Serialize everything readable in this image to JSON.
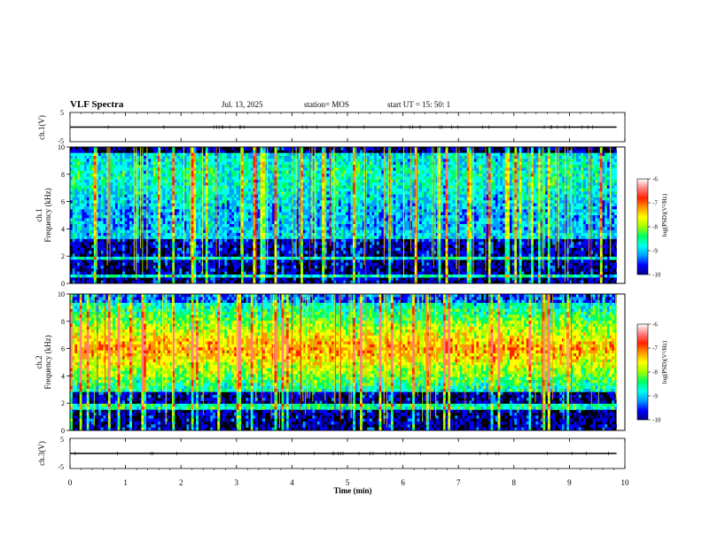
{
  "header": {
    "title": "VLF Spectra",
    "date": "Jul. 13, 2025",
    "station": "station= MOS",
    "start": "start UT =  15: 50: 1"
  },
  "colors": {
    "cmap": [
      "#000088",
      "#0000ff",
      "#00a0ff",
      "#00ffee",
      "#00ff60",
      "#a0ff00",
      "#ffff00",
      "#ff9900",
      "#ff2200",
      "#ff8080",
      "#ffffff"
    ],
    "background": "#000000",
    "line": "#000000"
  },
  "chart_data": [
    {
      "type": "line",
      "name": "ch1-voltage",
      "ylabel": "ch.1(V)",
      "ylim": [
        -5,
        5
      ],
      "yticks": [
        "5",
        "-5"
      ],
      "baseline": 0,
      "xlim": [
        0,
        10
      ]
    },
    {
      "type": "heatmap",
      "name": "ch1-spectrogram",
      "ylabel_top": "ch.1",
      "ylabel": "Frequency (kHz)",
      "ylim": [
        0,
        10
      ],
      "yticks": [
        "0",
        "2",
        "4",
        "6",
        "8",
        "10"
      ],
      "xlim": [
        0,
        9.85
      ],
      "colorbar": {
        "label": "log(PSD)(V²/Hz)",
        "ticks": [
          "-6",
          "-7",
          "-8",
          "-9",
          "-10"
        ],
        "range": [
          -10,
          -6
        ]
      }
    },
    {
      "type": "heatmap",
      "name": "ch2-spectrogram",
      "ylabel_top": "ch.2",
      "ylabel": "Frequency (kHz)",
      "ylim": [
        0,
        10
      ],
      "yticks": [
        "0",
        "2",
        "4",
        "6",
        "8",
        "10"
      ],
      "xlim": [
        0,
        9.85
      ],
      "colorbar": {
        "label": "log(PSD)(V²/Hz)",
        "ticks": [
          "-6",
          "-7",
          "-8",
          "-9",
          "-10"
        ],
        "range": [
          -10,
          -6
        ]
      }
    },
    {
      "type": "line",
      "name": "ch3-voltage",
      "ylabel": "ch.3(V)",
      "ylim": [
        -5,
        5
      ],
      "yticks": [
        "5",
        "-5"
      ],
      "baseline": 0,
      "xlim": [
        0,
        10
      ]
    }
  ],
  "xaxis": {
    "label": "Time (min)",
    "ticks": [
      "0",
      "1",
      "2",
      "3",
      "4",
      "5",
      "6",
      "7",
      "8",
      "9",
      "10"
    ],
    "range": [
      0,
      10
    ]
  }
}
